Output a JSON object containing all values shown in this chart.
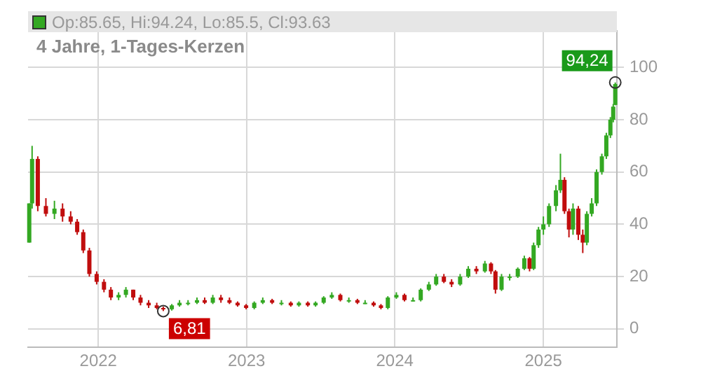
{
  "chart_data": {
    "type": "candlestick",
    "title": "Op:85.65, Hi:94.24, Lo:85.5, Cl:93.63",
    "subtitle": "4 Jahre, 1-Tages-Kerzen",
    "x": [
      "2021-07-15",
      "2021-07-22",
      "2021-08-05",
      "2021-08-25",
      "2021-09-15",
      "2021-10-05",
      "2021-10-25",
      "2021-11-10",
      "2021-11-25",
      "2021-12-10",
      "2021-12-28",
      "2022-01-15",
      "2022-02-01",
      "2022-02-20",
      "2022-03-10",
      "2022-03-28",
      "2022-04-15",
      "2022-05-05",
      "2022-05-25",
      "2022-06-10",
      "2022-07-01",
      "2022-07-20",
      "2022-08-10",
      "2022-09-01",
      "2022-09-20",
      "2022-10-10",
      "2022-10-30",
      "2022-11-20",
      "2022-12-10",
      "2022-12-31",
      "2023-01-20",
      "2023-02-10",
      "2023-03-05",
      "2023-03-28",
      "2023-04-20",
      "2023-05-10",
      "2023-06-01",
      "2023-06-20",
      "2023-07-10",
      "2023-07-30",
      "2023-08-20",
      "2023-09-10",
      "2023-10-01",
      "2023-10-20",
      "2023-11-10",
      "2023-11-28",
      "2023-12-15",
      "2024-01-05",
      "2024-01-25",
      "2024-02-15",
      "2024-03-05",
      "2024-03-25",
      "2024-04-12",
      "2024-05-01",
      "2024-05-20",
      "2024-06-10",
      "2024-06-30",
      "2024-07-20",
      "2024-08-10",
      "2024-08-25",
      "2024-09-05",
      "2024-09-20",
      "2024-10-10",
      "2024-10-30",
      "2024-11-15",
      "2024-11-28",
      "2024-12-08",
      "2024-12-20",
      "2025-01-01",
      "2025-01-15",
      "2025-02-01",
      "2025-02-12",
      "2025-02-22",
      "2025-03-05",
      "2025-03-15",
      "2025-03-28",
      "2025-04-08",
      "2025-04-18",
      "2025-04-30",
      "2025-05-12",
      "2025-05-25",
      "2025-06-05",
      "2025-06-15",
      "2025-06-22",
      "2025-06-27"
    ],
    "ohlc": [
      [
        33,
        48,
        33,
        48
      ],
      [
        48,
        70,
        46,
        65
      ],
      [
        65,
        66,
        45,
        47
      ],
      [
        47,
        50,
        43,
        44
      ],
      [
        44,
        49,
        42,
        46
      ],
      [
        46,
        48,
        41,
        43
      ],
      [
        43,
        45,
        40,
        41
      ],
      [
        41,
        42,
        36,
        37
      ],
      [
        37,
        38,
        29,
        30
      ],
      [
        30,
        31,
        20,
        21
      ],
      [
        21,
        22,
        17,
        18
      ],
      [
        18,
        19,
        14,
        15
      ],
      [
        15,
        16,
        11,
        12
      ],
      [
        12,
        14,
        11,
        13
      ],
      [
        13,
        16,
        12,
        15
      ],
      [
        15,
        15,
        11,
        12
      ],
      [
        12,
        13,
        9,
        10
      ],
      [
        10,
        11,
        8,
        9
      ],
      [
        9,
        10,
        7.5,
        8
      ],
      [
        8,
        8.5,
        6.81,
        7.5
      ],
      [
        7.5,
        9.5,
        7,
        9
      ],
      [
        9,
        11,
        8.5,
        10
      ],
      [
        10,
        11,
        9,
        10
      ],
      [
        10,
        12,
        9.5,
        11
      ],
      [
        11,
        12,
        9.5,
        10
      ],
      [
        10,
        13,
        9.5,
        12
      ],
      [
        12,
        13,
        10,
        11
      ],
      [
        11,
        12,
        9.5,
        10
      ],
      [
        10,
        10.5,
        8.5,
        9
      ],
      [
        9,
        9.5,
        7.5,
        8
      ],
      [
        8,
        10.5,
        7.5,
        10
      ],
      [
        10,
        12,
        9.5,
        11
      ],
      [
        11,
        11.5,
        9.5,
        10
      ],
      [
        10,
        11,
        9,
        10
      ],
      [
        10,
        10.5,
        8.5,
        9
      ],
      [
        9,
        10.5,
        8.5,
        10
      ],
      [
        10,
        10.5,
        8.5,
        9
      ],
      [
        9,
        10.5,
        8.5,
        10
      ],
      [
        10,
        12.5,
        9.5,
        12
      ],
      [
        12,
        14,
        11.5,
        13
      ],
      [
        13,
        13.5,
        10.5,
        11
      ],
      [
        11,
        12,
        10,
        11
      ],
      [
        11,
        11.5,
        9.5,
        10
      ],
      [
        10,
        11,
        9.5,
        10
      ],
      [
        10,
        10.5,
        8.5,
        9
      ],
      [
        9,
        9.5,
        7.5,
        8
      ],
      [
        8,
        12.5,
        7.5,
        12
      ],
      [
        12,
        14,
        11.5,
        13
      ],
      [
        13,
        13.5,
        10.5,
        11
      ],
      [
        11,
        12,
        10.5,
        11
      ],
      [
        11,
        15.5,
        10.5,
        15
      ],
      [
        15,
        18,
        14.5,
        17
      ],
      [
        17,
        21,
        16.5,
        20
      ],
      [
        20,
        21,
        17.5,
        18
      ],
      [
        18,
        19,
        16,
        17
      ],
      [
        17,
        21,
        16.5,
        20
      ],
      [
        20,
        24,
        19.5,
        23
      ],
      [
        23,
        24,
        21,
        22
      ],
      [
        22,
        26,
        21.5,
        25
      ],
      [
        25,
        25.5,
        21,
        22
      ],
      [
        22,
        22.5,
        13.5,
        15
      ],
      [
        15,
        21,
        14.5,
        20
      ],
      [
        20,
        21,
        18.5,
        20
      ],
      [
        20,
        23.5,
        19.5,
        23
      ],
      [
        23,
        28,
        22.5,
        27
      ],
      [
        27,
        27.5,
        22,
        23
      ],
      [
        23,
        33,
        22.5,
        32
      ],
      [
        32,
        39,
        31,
        38
      ],
      [
        38,
        43,
        36,
        40
      ],
      [
        40,
        48,
        39,
        47
      ],
      [
        47,
        55,
        45,
        53
      ],
      [
        53,
        67,
        52,
        57
      ],
      [
        57,
        58,
        44,
        45
      ],
      [
        45,
        46,
        35,
        38
      ],
      [
        38,
        48,
        36,
        46
      ],
      [
        46,
        47,
        34,
        36
      ],
      [
        36,
        38,
        29,
        33
      ],
      [
        33,
        45,
        32,
        44
      ],
      [
        44,
        50,
        43,
        48
      ],
      [
        48,
        61,
        47,
        60
      ],
      [
        60,
        67,
        59,
        66
      ],
      [
        66,
        75,
        65,
        74
      ],
      [
        74,
        81,
        73,
        80
      ],
      [
        80,
        86,
        79,
        85
      ],
      [
        85.65,
        94.24,
        85.5,
        93.63
      ]
    ],
    "colors": [
      "#33a822",
      "#33a822",
      "#c00d0d",
      "#c00d0d",
      "#33a822",
      "#c00d0d",
      "#c00d0d",
      "#c00d0d",
      "#c00d0d",
      "#c00d0d",
      "#c00d0d",
      "#c00d0d",
      "#c00d0d",
      "#33a822",
      "#33a822",
      "#c00d0d",
      "#c00d0d",
      "#c00d0d",
      "#c00d0d",
      "#c00d0d",
      "#33a822",
      "#33a822",
      "#33a822",
      "#33a822",
      "#c00d0d",
      "#33a822",
      "#c00d0d",
      "#c00d0d",
      "#c00d0d",
      "#c00d0d",
      "#33a822",
      "#33a822",
      "#c00d0d",
      "#33a822",
      "#c00d0d",
      "#33a822",
      "#c00d0d",
      "#33a822",
      "#33a822",
      "#33a822",
      "#c00d0d",
      "#33a822",
      "#c00d0d",
      "#33a822",
      "#c00d0d",
      "#c00d0d",
      "#33a822",
      "#33a822",
      "#c00d0d",
      "#33a822",
      "#33a822",
      "#33a822",
      "#33a822",
      "#c00d0d",
      "#c00d0d",
      "#33a822",
      "#33a822",
      "#c00d0d",
      "#33a822",
      "#c00d0d",
      "#c00d0d",
      "#33a822",
      "#33a822",
      "#33a822",
      "#33a822",
      "#c00d0d",
      "#33a822",
      "#33a822",
      "#33a822",
      "#33a822",
      "#33a822",
      "#33a822",
      "#c00d0d",
      "#c00d0d",
      "#33a822",
      "#c00d0d",
      "#c00d0d",
      "#33a822",
      "#33a822",
      "#33a822",
      "#33a822",
      "#33a822",
      "#33a822",
      "#33a822",
      "#33a822"
    ],
    "xlim": [
      "2021-07-12",
      "2025-07-01"
    ],
    "xticks": [
      {
        "value": "2022-01-01",
        "label": "2022"
      },
      {
        "value": "2023-01-01",
        "label": "2023"
      },
      {
        "value": "2024-01-01",
        "label": "2024"
      },
      {
        "value": "2025-01-01",
        "label": "2025"
      }
    ],
    "ylim": [
      -7,
      114
    ],
    "yticks": [
      0,
      20,
      40,
      60,
      80,
      100
    ],
    "grid": true,
    "annotations": [
      {
        "text": "6,81",
        "x": "2022-06-10",
        "y": 6.81
      },
      {
        "text": "94,24",
        "x": "2025-06-27",
        "y": 94.24
      }
    ]
  }
}
